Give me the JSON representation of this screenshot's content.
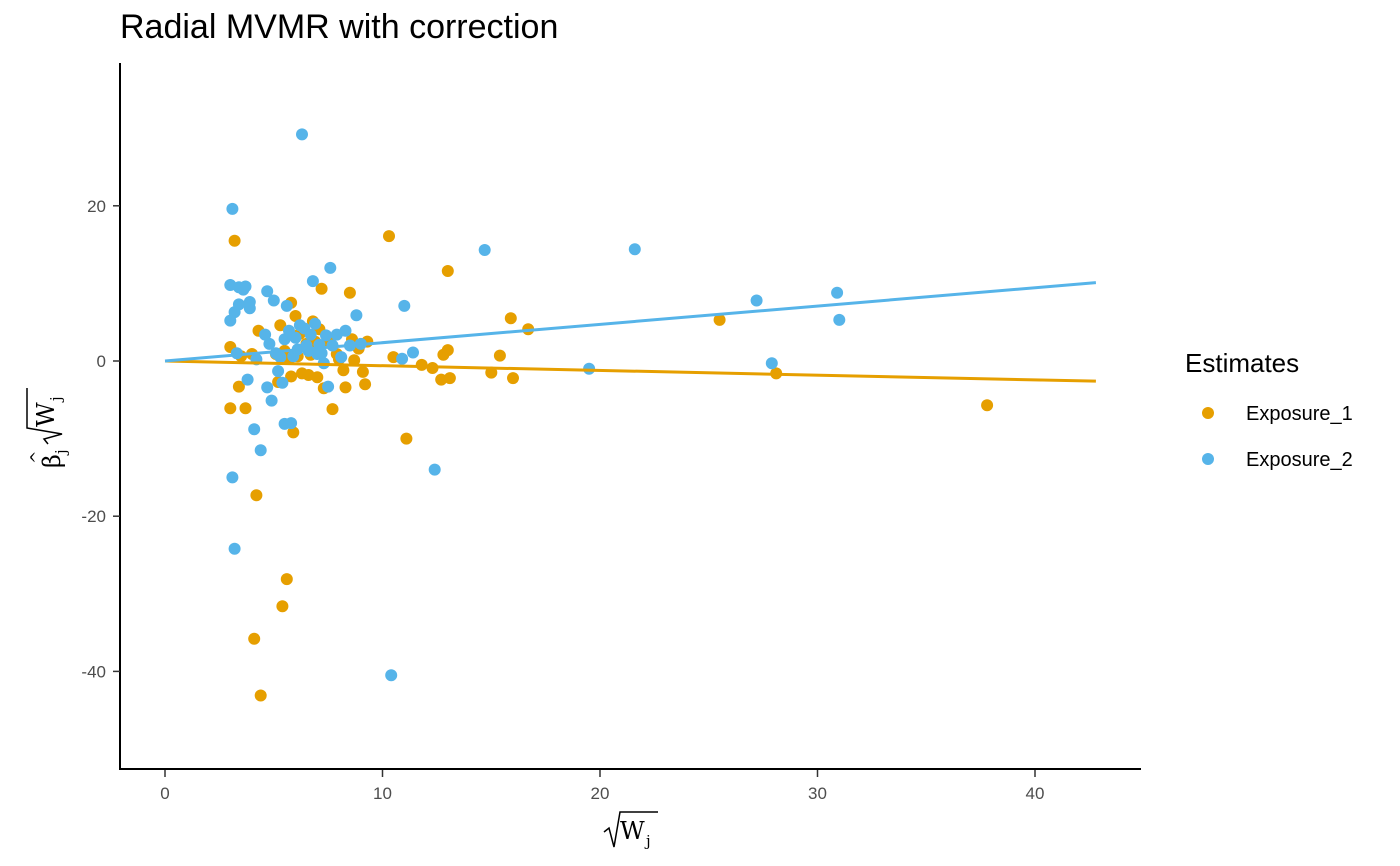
{
  "chart_data": {
    "type": "scatter",
    "title": "Radial MVMR with correction",
    "xlabel": "√W_j",
    "ylabel": "β̂_j √W_j",
    "xlim": [
      -2,
      45
    ],
    "ylim": [
      -52,
      38
    ],
    "x_ticks": [
      0,
      10,
      20,
      30,
      40
    ],
    "y_ticks": [
      20,
      0,
      -20,
      -40
    ],
    "grid": false,
    "legend": {
      "title": "Estimates",
      "position": "right"
    },
    "series": [
      {
        "name": "Exposure_1",
        "color": "#E69F00",
        "fit_line": {
          "x": [
            0,
            42.8
          ],
          "y": [
            0,
            -2.6
          ]
        },
        "points": [
          [
            3.0,
            1.8
          ],
          [
            3.0,
            -6.1
          ],
          [
            3.2,
            15.5
          ],
          [
            3.4,
            -3.3
          ],
          [
            3.5,
            0.6
          ],
          [
            3.7,
            -6.1
          ],
          [
            4.0,
            0.9
          ],
          [
            4.1,
            -35.8
          ],
          [
            4.2,
            -17.3
          ],
          [
            4.3,
            3.9
          ],
          [
            4.4,
            -43.1
          ],
          [
            5.1,
            0.9
          ],
          [
            5.2,
            -2.7
          ],
          [
            5.3,
            4.6
          ],
          [
            5.4,
            -31.6
          ],
          [
            5.5,
            1.3
          ],
          [
            5.6,
            -28.1
          ],
          [
            5.7,
            0.3
          ],
          [
            5.8,
            -2.0
          ],
          [
            5.8,
            7.5
          ],
          [
            5.9,
            -9.2
          ],
          [
            6.0,
            5.8
          ],
          [
            6.1,
            0.6
          ],
          [
            6.2,
            3.5
          ],
          [
            6.3,
            -1.6
          ],
          [
            6.5,
            2.2
          ],
          [
            6.6,
            -1.8
          ],
          [
            6.7,
            0.8
          ],
          [
            6.8,
            5.1
          ],
          [
            6.9,
            2.5
          ],
          [
            7.0,
            -2.1
          ],
          [
            7.1,
            4.1
          ],
          [
            7.2,
            9.3
          ],
          [
            7.3,
            -3.5
          ],
          [
            7.5,
            2.6
          ],
          [
            7.7,
            -6.2
          ],
          [
            7.9,
            0.9
          ],
          [
            8.0,
            0.2
          ],
          [
            8.2,
            -1.2
          ],
          [
            8.3,
            -3.4
          ],
          [
            8.5,
            8.8
          ],
          [
            8.6,
            2.8
          ],
          [
            8.7,
            0.1
          ],
          [
            8.9,
            1.6
          ],
          [
            9.1,
            -1.4
          ],
          [
            9.2,
            -3.0
          ],
          [
            9.3,
            2.5
          ],
          [
            10.3,
            16.1
          ],
          [
            10.5,
            0.5
          ],
          [
            11.1,
            -10.0
          ],
          [
            11.8,
            -0.5
          ],
          [
            12.3,
            -0.9
          ],
          [
            12.7,
            -2.4
          ],
          [
            12.8,
            0.8
          ],
          [
            13.0,
            1.4
          ],
          [
            13.0,
            11.6
          ],
          [
            13.1,
            -2.2
          ],
          [
            15.0,
            -1.5
          ],
          [
            15.4,
            0.7
          ],
          [
            15.9,
            5.5
          ],
          [
            16.0,
            -2.2
          ],
          [
            16.7,
            4.1
          ],
          [
            25.5,
            5.3
          ],
          [
            28.1,
            -1.6
          ],
          [
            37.8,
            -5.7
          ]
        ]
      },
      {
        "name": "Exposure_2",
        "color": "#56B4E9",
        "fit_line": {
          "x": [
            0,
            42.8
          ],
          "y": [
            0,
            10.1
          ]
        },
        "points": [
          [
            3.0,
            5.2
          ],
          [
            3.0,
            9.8
          ],
          [
            3.1,
            19.6
          ],
          [
            3.1,
            -15.0
          ],
          [
            3.2,
            6.3
          ],
          [
            3.2,
            -24.2
          ],
          [
            3.3,
            1.0
          ],
          [
            3.4,
            7.3
          ],
          [
            3.4,
            9.5
          ],
          [
            3.6,
            9.2
          ],
          [
            3.7,
            9.6
          ],
          [
            3.8,
            -2.4
          ],
          [
            3.9,
            6.8
          ],
          [
            3.9,
            7.6
          ],
          [
            4.1,
            -8.8
          ],
          [
            4.2,
            0.2
          ],
          [
            4.4,
            -11.5
          ],
          [
            4.6,
            3.4
          ],
          [
            4.7,
            9.0
          ],
          [
            4.7,
            -3.4
          ],
          [
            4.8,
            2.2
          ],
          [
            4.9,
            -5.1
          ],
          [
            5.0,
            7.8
          ],
          [
            5.1,
            1.0
          ],
          [
            5.2,
            -1.3
          ],
          [
            5.3,
            0.5
          ],
          [
            5.4,
            -2.8
          ],
          [
            5.5,
            -8.1
          ],
          [
            5.5,
            2.8
          ],
          [
            5.6,
            7.1
          ],
          [
            5.7,
            3.9
          ],
          [
            5.8,
            -8.0
          ],
          [
            5.9,
            0.6
          ],
          [
            6.0,
            3.0
          ],
          [
            6.1,
            1.5
          ],
          [
            6.2,
            4.6
          ],
          [
            6.3,
            29.2
          ],
          [
            6.4,
            4.2
          ],
          [
            6.5,
            2.0
          ],
          [
            6.6,
            1.3
          ],
          [
            6.7,
            3.4
          ],
          [
            6.8,
            10.3
          ],
          [
            6.9,
            4.8
          ],
          [
            7.0,
            0.9
          ],
          [
            7.1,
            2.1
          ],
          [
            7.2,
            1.0
          ],
          [
            7.3,
            -0.3
          ],
          [
            7.4,
            3.3
          ],
          [
            7.5,
            -3.3
          ],
          [
            7.6,
            12.0
          ],
          [
            7.7,
            2.0
          ],
          [
            7.9,
            3.4
          ],
          [
            8.1,
            0.5
          ],
          [
            8.3,
            3.9
          ],
          [
            8.5,
            2.0
          ],
          [
            8.8,
            5.9
          ],
          [
            9.0,
            2.2
          ],
          [
            10.4,
            -40.5
          ],
          [
            10.9,
            0.3
          ],
          [
            11.0,
            7.1
          ],
          [
            11.4,
            1.1
          ],
          [
            12.4,
            -14.0
          ],
          [
            14.7,
            14.3
          ],
          [
            19.5,
            -1.0
          ],
          [
            21.6,
            14.4
          ],
          [
            27.2,
            7.8
          ],
          [
            27.9,
            -0.3
          ],
          [
            30.9,
            8.8
          ],
          [
            31.0,
            5.3
          ]
        ]
      }
    ]
  }
}
